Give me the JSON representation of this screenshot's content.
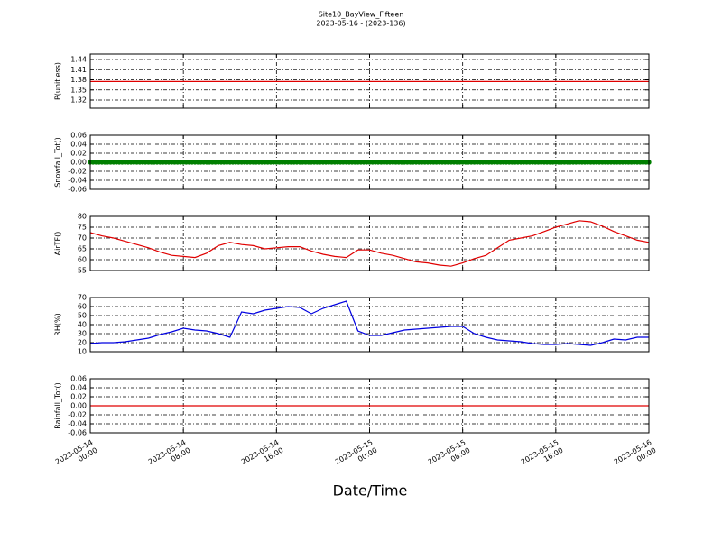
{
  "chart_data": [
    {
      "type": "line",
      "title": "Site10_BayView_Fifteen",
      "subtitle": "2023-05-16 - (2023-136)",
      "ylabel": "P(unitless)",
      "color": "#e00000",
      "x": [
        "2023-05-14 00:00",
        "2023-05-16 00:00"
      ],
      "values": [
        1.375,
        1.375
      ],
      "xlim": [
        "2023-05-14 00:00",
        "2023-05-16 00:00"
      ],
      "xticks": [
        "2023-05-14 00:00",
        "2023-05-14 08:00",
        "2023-05-14 16:00",
        "2023-05-15 00:00",
        "2023-05-15 08:00",
        "2023-05-15 16:00",
        "2023-05-16 00:00"
      ],
      "ylim": [
        1.296,
        1.456
      ],
      "yticks": [
        1.32,
        1.35,
        1.38,
        1.41,
        1.44
      ],
      "grid": true
    },
    {
      "type": "line",
      "ylabel": "Snowfall_Tot()",
      "color": "#007f00",
      "marker": "o",
      "x": [
        "2023-05-14 00:00",
        "2023-05-14 01:00",
        "2023-05-14 02:00",
        "2023-05-14 03:00",
        "2023-05-14 04:00",
        "2023-05-14 05:00",
        "2023-05-14 06:00",
        "2023-05-14 07:00",
        "2023-05-14 08:00",
        "2023-05-14 09:00",
        "2023-05-14 10:00",
        "2023-05-14 11:00",
        "2023-05-14 12:00",
        "2023-05-14 13:00",
        "2023-05-14 14:00",
        "2023-05-14 15:00",
        "2023-05-14 16:00",
        "2023-05-14 17:00",
        "2023-05-14 18:00",
        "2023-05-14 19:00",
        "2023-05-14 20:00",
        "2023-05-14 21:00",
        "2023-05-14 22:00",
        "2023-05-14 23:00",
        "2023-05-15 00:00",
        "2023-05-15 01:00",
        "2023-05-15 02:00",
        "2023-05-15 03:00",
        "2023-05-15 04:00",
        "2023-05-15 05:00",
        "2023-05-15 06:00",
        "2023-05-15 07:00",
        "2023-05-15 08:00",
        "2023-05-15 09:00",
        "2023-05-15 10:00",
        "2023-05-15 11:00",
        "2023-05-15 12:00",
        "2023-05-15 13:00",
        "2023-05-15 14:00",
        "2023-05-15 15:00",
        "2023-05-15 16:00",
        "2023-05-15 17:00",
        "2023-05-15 18:00",
        "2023-05-15 19:00",
        "2023-05-15 20:00",
        "2023-05-15 21:00",
        "2023-05-15 22:00",
        "2023-05-15 23:00",
        "2023-05-16 00:00"
      ],
      "values": [
        0,
        0,
        0,
        0,
        0,
        0,
        0,
        0,
        0,
        0,
        0,
        0,
        0,
        0,
        0,
        0,
        0,
        0,
        0,
        0,
        0,
        0,
        0,
        0,
        0,
        0,
        0,
        0,
        0,
        0,
        0,
        0,
        0,
        0,
        0,
        0,
        0,
        0,
        0,
        0,
        0,
        0,
        0,
        0,
        0,
        0,
        0,
        0,
        0
      ],
      "xlim": [
        "2023-05-14 00:00",
        "2023-05-16 00:00"
      ],
      "xticks": [
        "2023-05-14 00:00",
        "2023-05-14 08:00",
        "2023-05-14 16:00",
        "2023-05-15 00:00",
        "2023-05-15 08:00",
        "2023-05-15 16:00",
        "2023-05-16 00:00"
      ],
      "ylim": [
        -0.06,
        0.06
      ],
      "yticks": [
        -0.06,
        -0.04,
        -0.02,
        {
          "value": 0,
          "label": "0.00"
        },
        0.02,
        0.04,
        0.06
      ],
      "grid": true
    },
    {
      "type": "line",
      "ylabel": "AirTF()",
      "color": "#e00000",
      "x": [
        "2023-05-14 00:00",
        "2023-05-14 01:00",
        "2023-05-14 02:00",
        "2023-05-14 03:00",
        "2023-05-14 04:00",
        "2023-05-14 05:00",
        "2023-05-14 06:00",
        "2023-05-14 07:00",
        "2023-05-14 08:00",
        "2023-05-14 09:00",
        "2023-05-14 10:00",
        "2023-05-14 11:00",
        "2023-05-14 12:00",
        "2023-05-14 13:00",
        "2023-05-14 14:00",
        "2023-05-14 15:00",
        "2023-05-14 16:00",
        "2023-05-14 17:00",
        "2023-05-14 18:00",
        "2023-05-14 19:00",
        "2023-05-14 20:00",
        "2023-05-14 21:00",
        "2023-05-14 22:00",
        "2023-05-14 23:00",
        "2023-05-15 00:00",
        "2023-05-15 01:00",
        "2023-05-15 02:00",
        "2023-05-15 03:00",
        "2023-05-15 04:00",
        "2023-05-15 05:00",
        "2023-05-15 06:00",
        "2023-05-15 07:00",
        "2023-05-15 08:00",
        "2023-05-15 09:00",
        "2023-05-15 10:00",
        "2023-05-15 11:00",
        "2023-05-15 12:00",
        "2023-05-15 13:00",
        "2023-05-15 14:00",
        "2023-05-15 15:00",
        "2023-05-15 16:00",
        "2023-05-15 17:00",
        "2023-05-15 18:00",
        "2023-05-15 19:00",
        "2023-05-15 20:00",
        "2023-05-15 21:00",
        "2023-05-15 22:00",
        "2023-05-15 23:00",
        "2023-05-16 00:00"
      ],
      "values": [
        72.5,
        71,
        70,
        68.5,
        67,
        65.5,
        63.5,
        62,
        61.5,
        61,
        63,
        66.5,
        68,
        67,
        66.5,
        65,
        65.5,
        66,
        66,
        64,
        62.5,
        61.5,
        61,
        64.5,
        64.5,
        63,
        62,
        60.5,
        59,
        58.5,
        57.5,
        57,
        58.5,
        60.5,
        62,
        65.5,
        69,
        70,
        71,
        73,
        75,
        76.5,
        78,
        77.5,
        75.5,
        73,
        71,
        69,
        68
      ],
      "xlim": [
        "2023-05-14 00:00",
        "2023-05-16 00:00"
      ],
      "xticks": [
        "2023-05-14 00:00",
        "2023-05-14 08:00",
        "2023-05-14 16:00",
        "2023-05-15 00:00",
        "2023-05-15 08:00",
        "2023-05-15 16:00",
        "2023-05-16 00:00"
      ],
      "ylim": [
        55,
        80
      ],
      "yticks": [
        55,
        60,
        65,
        70,
        75,
        80
      ],
      "grid": true
    },
    {
      "type": "line",
      "ylabel": "RH(%)",
      "color": "#0000e0",
      "x": [
        "2023-05-14 00:00",
        "2023-05-14 01:00",
        "2023-05-14 02:00",
        "2023-05-14 03:00",
        "2023-05-14 04:00",
        "2023-05-14 05:00",
        "2023-05-14 06:00",
        "2023-05-14 07:00",
        "2023-05-14 08:00",
        "2023-05-14 09:00",
        "2023-05-14 10:00",
        "2023-05-14 11:00",
        "2023-05-14 12:00",
        "2023-05-14 13:00",
        "2023-05-14 14:00",
        "2023-05-14 15:00",
        "2023-05-14 16:00",
        "2023-05-14 17:00",
        "2023-05-14 18:00",
        "2023-05-14 19:00",
        "2023-05-14 20:00",
        "2023-05-14 21:00",
        "2023-05-14 22:00",
        "2023-05-14 23:00",
        "2023-05-15 00:00",
        "2023-05-15 01:00",
        "2023-05-15 02:00",
        "2023-05-15 03:00",
        "2023-05-15 04:00",
        "2023-05-15 05:00",
        "2023-05-15 06:00",
        "2023-05-15 07:00",
        "2023-05-15 08:00",
        "2023-05-15 09:00",
        "2023-05-15 10:00",
        "2023-05-15 11:00",
        "2023-05-15 12:00",
        "2023-05-15 13:00",
        "2023-05-15 14:00",
        "2023-05-15 15:00",
        "2023-05-15 16:00",
        "2023-05-15 17:00",
        "2023-05-15 18:00",
        "2023-05-15 19:00",
        "2023-05-15 20:00",
        "2023-05-15 21:00",
        "2023-05-15 22:00",
        "2023-05-15 23:00",
        "2023-05-16 00:00"
      ],
      "values": [
        19,
        20,
        20,
        21,
        23,
        25,
        29,
        32,
        36,
        34,
        33,
        30,
        26,
        54,
        52,
        56,
        58,
        60,
        59,
        52,
        58,
        62,
        66,
        33,
        28,
        28,
        31,
        34,
        35,
        36,
        37,
        38,
        38,
        30,
        26,
        23,
        22,
        21,
        19,
        18,
        18,
        19,
        18,
        17,
        20,
        24,
        23,
        26,
        26
      ],
      "xlim": [
        "2023-05-14 00:00",
        "2023-05-16 00:00"
      ],
      "xticks": [
        "2023-05-14 00:00",
        "2023-05-14 08:00",
        "2023-05-14 16:00",
        "2023-05-15 00:00",
        "2023-05-15 08:00",
        "2023-05-15 16:00",
        "2023-05-16 00:00"
      ],
      "ylim": [
        10,
        70
      ],
      "yticks": [
        10,
        20,
        30,
        40,
        50,
        60,
        70
      ],
      "grid": true
    },
    {
      "type": "line",
      "ylabel": "Rainfall_Tot()",
      "xlabel": "Date/Time",
      "color": "#e00000",
      "x": [
        "2023-05-14 00:00",
        "2023-05-16 00:00"
      ],
      "values": [
        0,
        0
      ],
      "xlim": [
        "2023-05-14 00:00",
        "2023-05-16 00:00"
      ],
      "xticks": [
        "2023-05-14 00:00",
        "2023-05-14 08:00",
        "2023-05-14 16:00",
        "2023-05-15 00:00",
        "2023-05-15 08:00",
        "2023-05-15 16:00",
        "2023-05-16 00:00"
      ],
      "ylim": [
        -0.06,
        0.06
      ],
      "yticks": [
        -0.06,
        -0.04,
        -0.02,
        {
          "value": 0,
          "label": "0.00"
        },
        0.02,
        0.04,
        0.06
      ],
      "grid": true
    }
  ]
}
